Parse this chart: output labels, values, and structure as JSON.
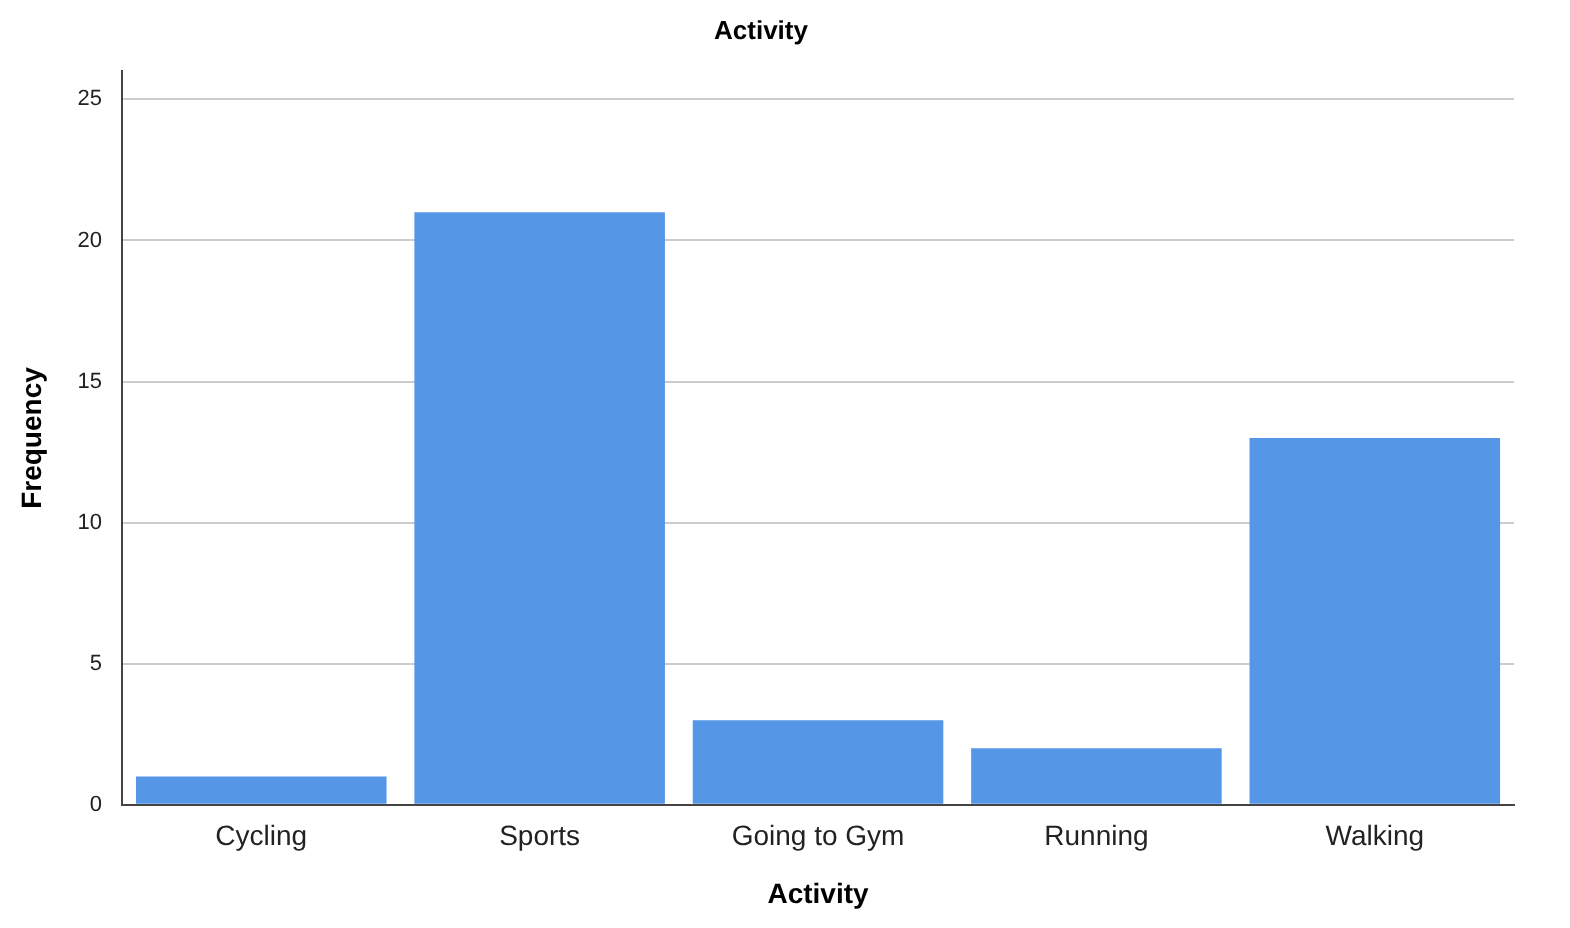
{
  "chart_data": {
    "type": "bar",
    "title": "Activity",
    "xlabel": "Activity",
    "ylabel": "Frequency",
    "categories": [
      "Cycling",
      "Sports",
      "Going to Gym",
      "Running",
      "Walking"
    ],
    "values": [
      1,
      21,
      3,
      2,
      13
    ],
    "color": "#5596e6",
    "ylim": [
      0,
      26
    ],
    "yticks": [
      0,
      5,
      10,
      15,
      20,
      25
    ],
    "grid": "y",
    "legend": false
  }
}
